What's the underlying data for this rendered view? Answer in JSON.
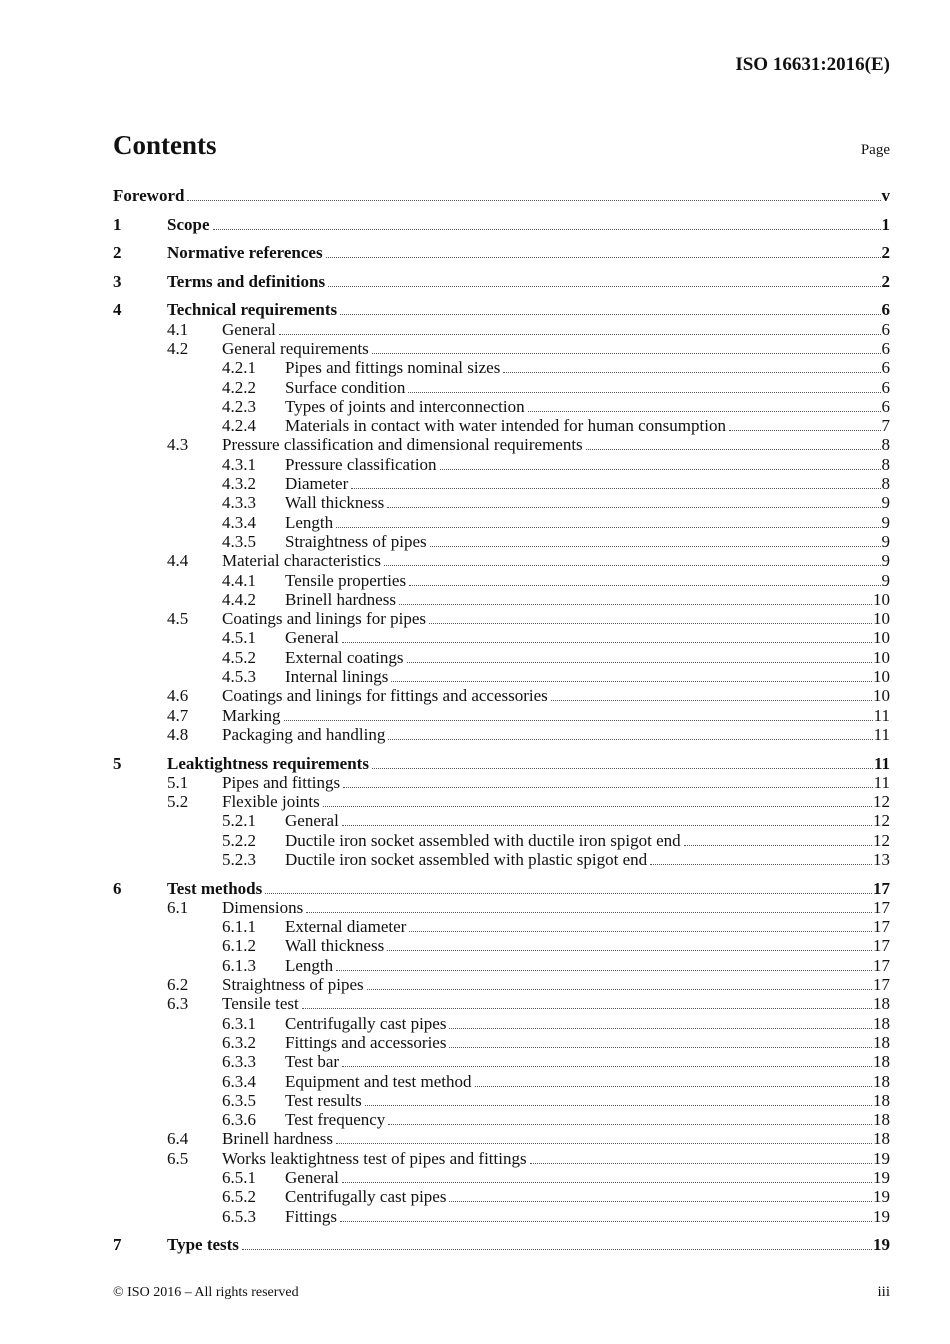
{
  "header": {
    "doc_id": "ISO 16631:2016(E)"
  },
  "title": "Contents",
  "page_label": "Page",
  "entries": [
    {
      "level": 0,
      "num": "",
      "title": "Foreword",
      "page": "v"
    },
    {
      "level": 1,
      "num": "1",
      "title": "Scope",
      "page": "1"
    },
    {
      "level": 1,
      "num": "2",
      "title": "Normative references",
      "page": "2"
    },
    {
      "level": 1,
      "num": "3",
      "title": "Terms and definitions",
      "page": "2"
    },
    {
      "level": 1,
      "num": "4",
      "title": "Technical requirements",
      "page": "6"
    },
    {
      "level": 2,
      "num": "4.1",
      "title": "General",
      "page": "6"
    },
    {
      "level": 2,
      "num": "4.2",
      "title": "General requirements",
      "page": "6"
    },
    {
      "level": 3,
      "num": "4.2.1",
      "title": "Pipes and fittings nominal sizes",
      "page": "6"
    },
    {
      "level": 3,
      "num": "4.2.2",
      "title": "Surface condition",
      "page": "6"
    },
    {
      "level": 3,
      "num": "4.2.3",
      "title": "Types of joints and interconnection",
      "page": "6"
    },
    {
      "level": 3,
      "num": "4.2.4",
      "title": "Materials in contact with water intended for human consumption",
      "page": "7"
    },
    {
      "level": 2,
      "num": "4.3",
      "title": "Pressure classification and dimensional requirements",
      "page": "8"
    },
    {
      "level": 3,
      "num": "4.3.1",
      "title": "Pressure classification",
      "page": "8"
    },
    {
      "level": 3,
      "num": "4.3.2",
      "title": "Diameter",
      "page": "8"
    },
    {
      "level": 3,
      "num": "4.3.3",
      "title": "Wall thickness",
      "page": "9"
    },
    {
      "level": 3,
      "num": "4.3.4",
      "title": "Length",
      "page": "9"
    },
    {
      "level": 3,
      "num": "4.3.5",
      "title": "Straightness of pipes",
      "page": "9"
    },
    {
      "level": 2,
      "num": "4.4",
      "title": "Material characteristics",
      "page": "9"
    },
    {
      "level": 3,
      "num": "4.4.1",
      "title": "Tensile properties",
      "page": "9"
    },
    {
      "level": 3,
      "num": "4.4.2",
      "title": "Brinell hardness",
      "page": "10"
    },
    {
      "level": 2,
      "num": "4.5",
      "title": "Coatings and linings for pipes",
      "page": "10"
    },
    {
      "level": 3,
      "num": "4.5.1",
      "title": "General",
      "page": "10"
    },
    {
      "level": 3,
      "num": "4.5.2",
      "title": "External coatings",
      "page": "10"
    },
    {
      "level": 3,
      "num": "4.5.3",
      "title": "Internal linings",
      "page": "10"
    },
    {
      "level": 2,
      "num": "4.6",
      "title": "Coatings and linings for fittings and accessories",
      "page": "10"
    },
    {
      "level": 2,
      "num": "4.7",
      "title": "Marking",
      "page": "11"
    },
    {
      "level": 2,
      "num": "4.8",
      "title": "Packaging and handling",
      "page": "11"
    },
    {
      "level": 1,
      "num": "5",
      "title": "Leaktightness requirements",
      "page": "11"
    },
    {
      "level": 2,
      "num": "5.1",
      "title": "Pipes and fittings",
      "page": "11"
    },
    {
      "level": 2,
      "num": "5.2",
      "title": "Flexible joints",
      "page": "12"
    },
    {
      "level": 3,
      "num": "5.2.1",
      "title": "General",
      "page": "12"
    },
    {
      "level": 3,
      "num": "5.2.2",
      "title": "Ductile iron socket assembled with ductile iron spigot end",
      "page": "12"
    },
    {
      "level": 3,
      "num": "5.2.3",
      "title": "Ductile iron socket assembled with plastic spigot end",
      "page": "13"
    },
    {
      "level": 1,
      "num": "6",
      "title": "Test methods",
      "page": "17"
    },
    {
      "level": 2,
      "num": "6.1",
      "title": "Dimensions",
      "page": "17"
    },
    {
      "level": 3,
      "num": "6.1.1",
      "title": "External diameter",
      "page": "17"
    },
    {
      "level": 3,
      "num": "6.1.2",
      "title": "Wall thickness",
      "page": "17"
    },
    {
      "level": 3,
      "num": "6.1.3",
      "title": "Length",
      "page": "17"
    },
    {
      "level": 2,
      "num": "6.2",
      "title": "Straightness of pipes",
      "page": "17"
    },
    {
      "level": 2,
      "num": "6.3",
      "title": "Tensile test",
      "page": "18"
    },
    {
      "level": 3,
      "num": "6.3.1",
      "title": "Centrifugally cast pipes",
      "page": "18"
    },
    {
      "level": 3,
      "num": "6.3.2",
      "title": "Fittings and accessories",
      "page": "18"
    },
    {
      "level": 3,
      "num": "6.3.3",
      "title": "Test bar",
      "page": "18"
    },
    {
      "level": 3,
      "num": "6.3.4",
      "title": "Equipment and test method",
      "page": "18"
    },
    {
      "level": 3,
      "num": "6.3.5",
      "title": "Test results",
      "page": "18"
    },
    {
      "level": 3,
      "num": "6.3.6",
      "title": "Test frequency",
      "page": "18"
    },
    {
      "level": 2,
      "num": "6.4",
      "title": "Brinell hardness",
      "page": "18"
    },
    {
      "level": 2,
      "num": "6.5",
      "title": "Works leaktightness test of pipes and fittings",
      "page": "19"
    },
    {
      "level": 3,
      "num": "6.5.1",
      "title": "General",
      "page": "19"
    },
    {
      "level": 3,
      "num": "6.5.2",
      "title": "Centrifugally cast pipes",
      "page": "19"
    },
    {
      "level": 3,
      "num": "6.5.3",
      "title": "Fittings",
      "page": "19"
    },
    {
      "level": 1,
      "num": "7",
      "title": "Type tests",
      "page": "19"
    }
  ],
  "footer": {
    "copyright": "© ISO 2016 – All rights reserved",
    "page_number": "iii"
  }
}
